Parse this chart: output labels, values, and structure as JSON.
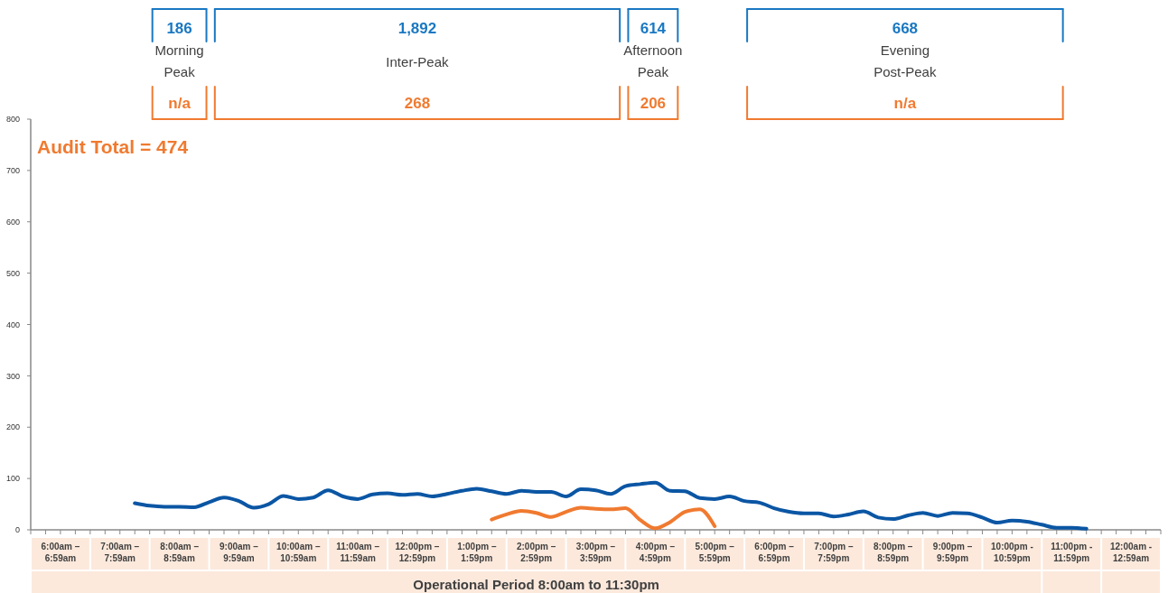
{
  "chart_data": {
    "type": "line",
    "xlabel": "Operational Period 8:00am to 11:30pm",
    "ylim": [
      0,
      800
    ],
    "yticks": [
      0,
      100,
      200,
      300,
      400,
      500,
      600,
      700,
      800
    ],
    "categories": [
      null,
      null,
      "6:00am – 6:59am",
      null,
      null,
      null,
      "7:00am – 7:59am",
      null,
      null,
      null,
      "8:00am – 8:59am",
      null,
      null,
      null,
      "9:00am – 9:59am",
      null,
      null,
      null,
      "10:00am – 10:59am",
      null,
      null,
      null,
      "11:00am – 11:59am",
      null,
      null,
      null,
      "12:00pm – 12:59pm",
      null,
      null,
      null,
      "1:00pm – 1:59pm",
      null,
      null,
      null,
      "2:00pm – 2:59pm",
      null,
      null,
      null,
      "3:00pm – 3:59pm",
      null,
      null,
      null,
      "4:00pm – 4:59pm",
      null,
      null,
      null,
      "5:00pm – 5:59pm",
      null,
      null,
      null,
      "6:00pm – 6:59pm",
      null,
      null,
      null,
      "7:00pm – 7:59pm",
      null,
      null,
      null,
      "8:00pm – 8:59pm",
      null,
      null,
      null,
      "9:00pm – 9:59pm",
      null,
      null,
      null,
      "10:00pm - 10:59pm",
      null,
      null,
      null,
      "11:00pm - 11:59pm",
      null,
      null,
      null,
      "12:00am - 12:59am",
      null
    ],
    "series": [
      {
        "color": "#0b56a4",
        "values": [
          null,
          null,
          null,
          null,
          null,
          null,
          null,
          52,
          47,
          45,
          45,
          44,
          54,
          63,
          56,
          43,
          50,
          66,
          60,
          63,
          77,
          65,
          60,
          69,
          71,
          68,
          70,
          65,
          70,
          76,
          80,
          75,
          70,
          76,
          74,
          74,
          65,
          79,
          77,
          70,
          85,
          89,
          92,
          76,
          75,
          62,
          60,
          65,
          56,
          53,
          42,
          35,
          32,
          32,
          26,
          30,
          36,
          24,
          21,
          28,
          33,
          27,
          33,
          32,
          24,
          14,
          18,
          16,
          10,
          4,
          4,
          2,
          null,
          null,
          null,
          null
        ]
      },
      {
        "color": "#f07a30",
        "values": [
          null,
          null,
          null,
          null,
          null,
          null,
          null,
          null,
          null,
          null,
          null,
          null,
          null,
          null,
          null,
          null,
          null,
          null,
          null,
          null,
          null,
          null,
          null,
          null,
          null,
          null,
          null,
          null,
          null,
          null,
          null,
          20,
          30,
          37,
          33,
          25,
          35,
          43,
          41,
          40,
          42,
          19,
          3,
          15,
          35,
          40,
          7,
          null,
          null,
          null,
          null,
          null,
          null,
          null,
          null,
          null,
          null,
          null,
          null,
          null,
          null,
          null,
          null,
          null,
          null,
          null,
          null,
          null,
          null,
          null,
          null,
          null,
          null,
          null,
          null,
          null
        ]
      }
    ],
    "annotations": [
      "Audit Total = 474",
      "186",
      "Morning Peak",
      "n/a",
      "1,892",
      "Inter-Peak",
      "268",
      "614",
      "Afternoon Peak",
      "206",
      "668",
      "Evening Post-Peak",
      "n/a"
    ]
  }
}
